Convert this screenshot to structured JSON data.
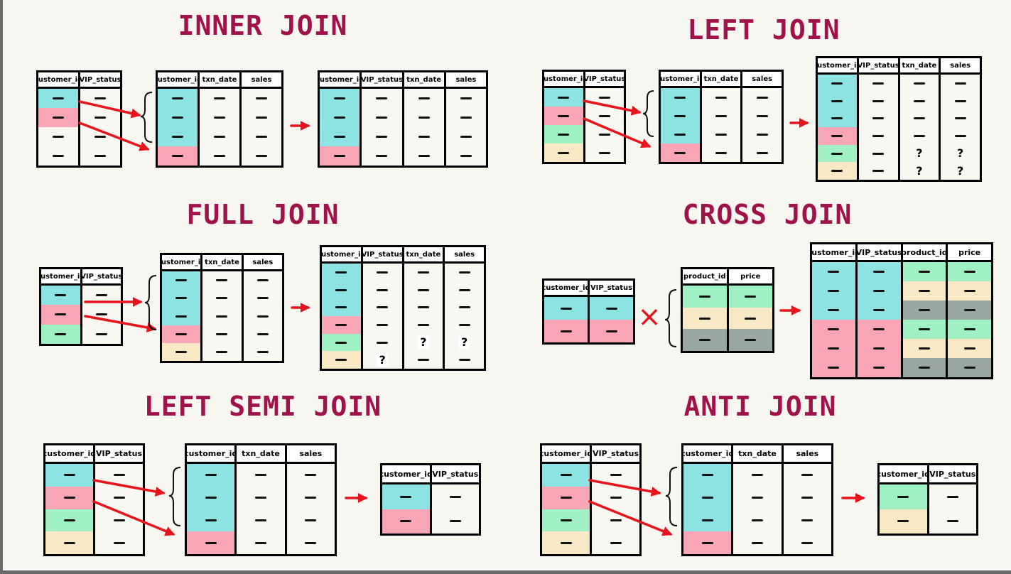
{
  "titles": {
    "inner": "INNER JOIN",
    "left": "LEFT JOIN",
    "full": "FULL JOIN",
    "cross": "CROSS JOIN",
    "semi": "LEFT SEMI JOIN",
    "anti": "ANTI JOIN"
  },
  "headers": {
    "customer_id": "customer_id",
    "vip_status": "VIP_status",
    "txn_date": "txn_date",
    "sales": "sales",
    "product_id": "product_id",
    "price": "price"
  },
  "symbols": {
    "unknown": "?",
    "times": "×"
  },
  "colors": {
    "title": "#a0124a",
    "arrow": "#e8141b",
    "cyan": "#8de3e3",
    "pink": "#f8a5b6",
    "green": "#9ff0c3",
    "cream": "#f8e8c3",
    "gray": "#9aa6a1"
  },
  "icons": [
    "arrow-right-icon",
    "curly-brace-icon",
    "cross-multiply-icon"
  ]
}
